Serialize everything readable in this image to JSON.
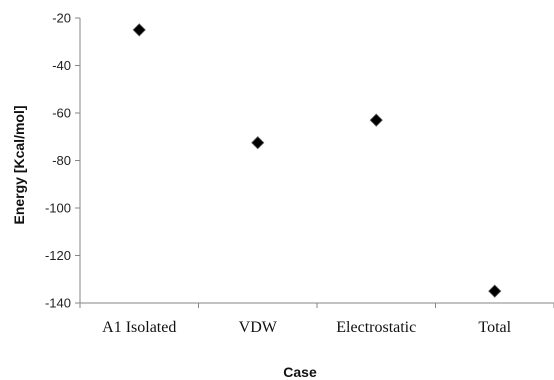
{
  "chart_data": {
    "type": "scatter",
    "xlabel": "Case",
    "ylabel": "Energy [Kcal/mol]",
    "categories": [
      "A1 Isolated",
      "VDW",
      "Electrostatic",
      "Total"
    ],
    "values": [
      -25,
      -72.5,
      -63,
      -135
    ],
    "ylim": [
      -140,
      -20
    ],
    "yticks": [
      -20,
      -40,
      -60,
      -80,
      -100,
      -120,
      -140
    ],
    "grid": false,
    "marker": "diamond",
    "marker_color": "#000000"
  }
}
